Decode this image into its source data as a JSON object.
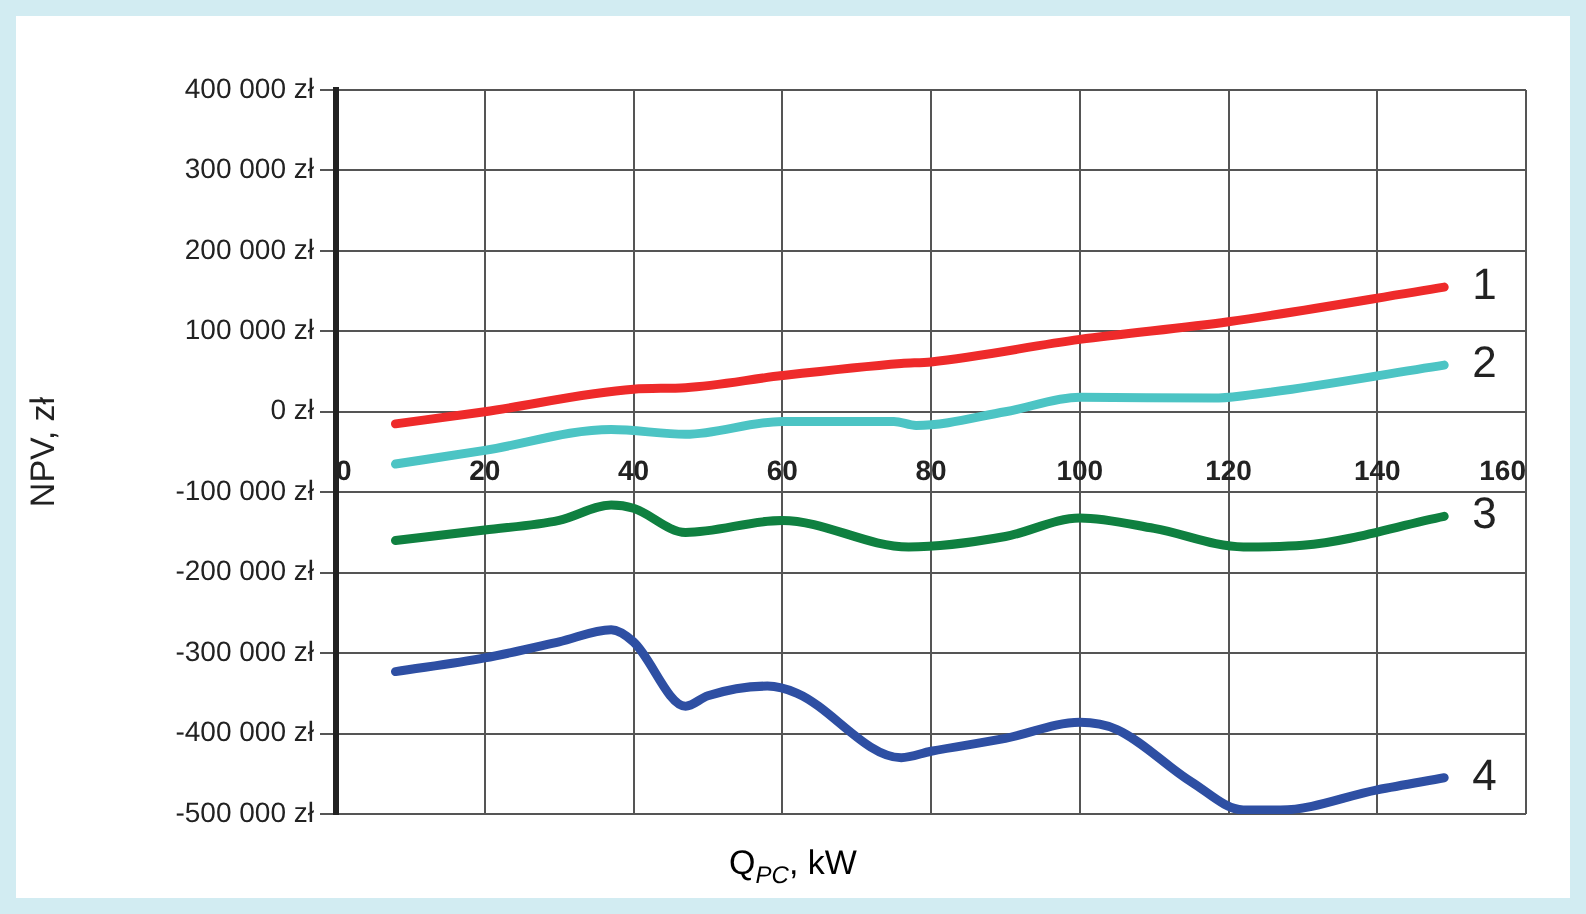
{
  "chart_data": {
    "type": "line",
    "xlabel": "Q$_{PC}$, kW",
    "ylabel": "NPV, zł",
    "xlim": [
      0,
      160
    ],
    "xticks": [
      0,
      20,
      40,
      60,
      80,
      100,
      120,
      140,
      160
    ],
    "ylim": [
      -500000,
      400000
    ],
    "yticks": [
      {
        "value": -500000,
        "label": "-500 000 zł"
      },
      {
        "value": -400000,
        "label": "-400 000 zł"
      },
      {
        "value": -300000,
        "label": "-300 000 zł"
      },
      {
        "value": -200000,
        "label": "-200 000 zł"
      },
      {
        "value": -100000,
        "label": "-100 000 zł"
      },
      {
        "value": 0,
        "label": "0 zł"
      },
      {
        "value": 100000,
        "label": "100 000 zł"
      },
      {
        "value": 200000,
        "label": "200 000 zł"
      },
      {
        "value": 300000,
        "label": "300 000 zł"
      },
      {
        "value": 400000,
        "label": "400 000 zł"
      }
    ],
    "grid": true,
    "legend": false,
    "marker": "none",
    "line_style": "solid",
    "series": [
      {
        "name": "1",
        "color": "#ee2a2a",
        "x": [
          8,
          20,
          40,
          47,
          60,
          76,
          80,
          100,
          120,
          149
        ],
        "values": [
          -15000,
          0,
          28000,
          30000,
          45000,
          60000,
          62000,
          90000,
          112000,
          155000
        ]
      },
      {
        "name": "2",
        "color": "#4cc4c4",
        "x": [
          8,
          20,
          37,
          47,
          60,
          75,
          78,
          90,
          100,
          118,
          122,
          149
        ],
        "values": [
          -65000,
          -48000,
          -22000,
          -28000,
          -12000,
          -12000,
          -17000,
          0,
          18000,
          17000,
          20000,
          58000
        ]
      },
      {
        "name": "3",
        "color": "#0f8040",
        "x": [
          8,
          20,
          30,
          37,
          40,
          47,
          60,
          77,
          90,
          100,
          110,
          122,
          130,
          149
        ],
        "values": [
          -160000,
          -147000,
          -135000,
          -116000,
          -120000,
          -150000,
          -135000,
          -168000,
          -155000,
          -132000,
          -145000,
          -168000,
          -166000,
          -130000
        ]
      },
      {
        "name": "4",
        "color": "#2e4fa3",
        "x": [
          8,
          20,
          30,
          37,
          40,
          47,
          50,
          58,
          62,
          76,
          80,
          90,
          100,
          105,
          115,
          122,
          127,
          140,
          149
        ],
        "values": [
          -323000,
          -306000,
          -286000,
          -271000,
          -286000,
          -366000,
          -353000,
          -341000,
          -350000,
          -430000,
          -422000,
          -406000,
          -386000,
          -395000,
          -460000,
          -495000,
          -495000,
          -470000,
          -455000
        ]
      }
    ]
  }
}
